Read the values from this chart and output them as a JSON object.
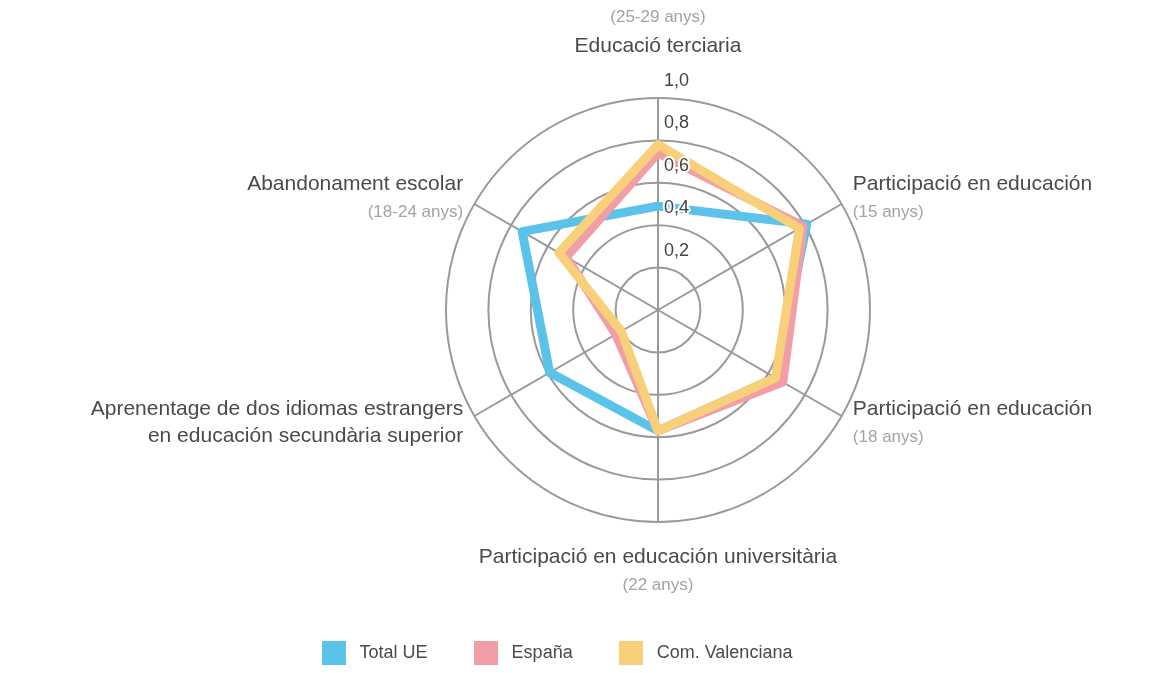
{
  "chart_data": {
    "type": "radar",
    "categories": [
      "(25-29 anys)\nEducació terciaria",
      "Participació en educación\n(15 anys)",
      "Participació en educación\n(18 anys)",
      "Participació en educación universitària\n(22 anys)",
      "Aprenentage de dos idiomas estrangers\nen educación secundària superior",
      "Abandonament escolar\n(18-24 anys)"
    ],
    "series": [
      {
        "name": "Total UE",
        "color": "#5bc2ea",
        "values": [
          0.49,
          0.81,
          0.64,
          0.57,
          0.59,
          0.74
        ]
      },
      {
        "name": "España",
        "color": "#f29ea6",
        "values": [
          0.74,
          0.79,
          0.68,
          0.57,
          0.23,
          0.5
        ]
      },
      {
        "name": "Com. Valenciana",
        "color": "#f9d07a",
        "values": [
          0.78,
          0.77,
          0.64,
          0.57,
          0.2,
          0.54
        ]
      }
    ],
    "ylim": [
      0,
      1
    ],
    "yticks": [
      {
        "value": 0.2,
        "label": "0,2"
      },
      {
        "value": 0.4,
        "label": "0,4"
      },
      {
        "value": 0.6,
        "label": "0,6"
      },
      {
        "value": 0.8,
        "label": "0,8"
      },
      {
        "value": 1,
        "label": "1,0"
      }
    ],
    "grid": true,
    "legend": "bottom"
  }
}
